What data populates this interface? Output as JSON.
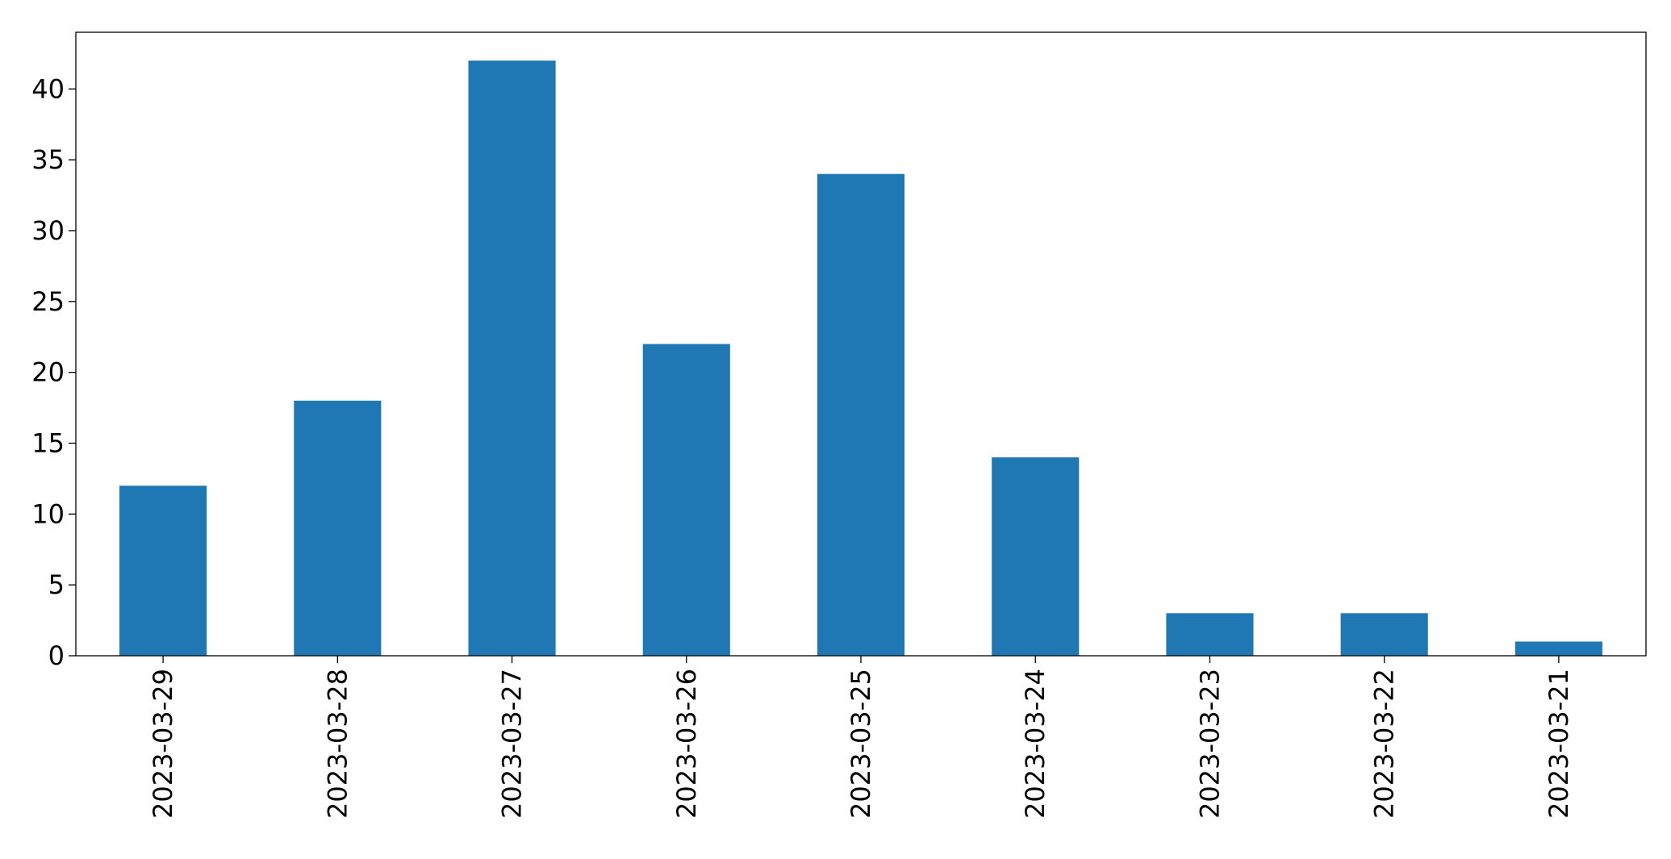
{
  "chart_data": {
    "type": "bar",
    "title": "",
    "xlabel": "",
    "ylabel": "",
    "categories": [
      "2023-03-29",
      "2023-03-28",
      "2023-03-27",
      "2023-03-26",
      "2023-03-25",
      "2023-03-24",
      "2023-03-23",
      "2023-03-22",
      "2023-03-21"
    ],
    "values": [
      12,
      18,
      42,
      22,
      34,
      14,
      3,
      3,
      1
    ],
    "ylim": [
      0,
      44
    ],
    "yticks": [
      0,
      5,
      10,
      15,
      20,
      25,
      30,
      35,
      40
    ],
    "grid": false,
    "legend": "none",
    "bar_color": "#1f77b4"
  }
}
